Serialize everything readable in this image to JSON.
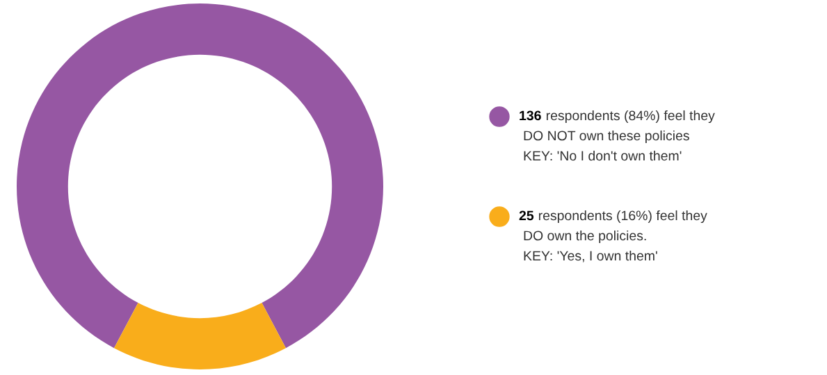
{
  "chart_data": {
    "type": "donut",
    "categories": [
      "respondents (84%) feel they\nDO NOT own these policies\nKEY: 'No I don't own them'",
      "respondents (16%) feel they\nDO own the policies.\nKEY: 'Yes, I own them'"
    ],
    "values": [
      136,
      25
    ],
    "colors": [
      "#9657a3",
      "#f9ad1b"
    ],
    "data_labels": true,
    "legend": "right"
  }
}
